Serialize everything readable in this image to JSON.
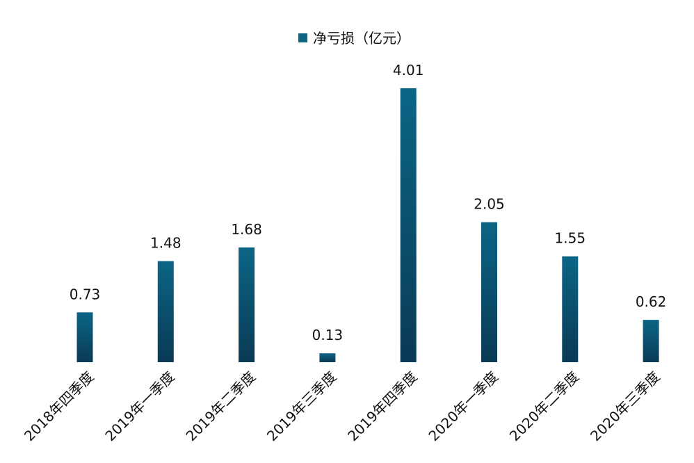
{
  "chart_data": {
    "type": "bar",
    "categories": [
      "2018年四季度",
      "2019年一季度",
      "2019年二季度",
      "2019年三季度",
      "2019年四季度",
      "2020年一季度",
      "2020年二季度",
      "2020年三季度"
    ],
    "series": [
      {
        "name": "净亏损（亿元）",
        "values": [
          0.73,
          1.48,
          1.68,
          0.13,
          4.01,
          2.05,
          1.55,
          0.62
        ],
        "color_top": "#0b6585",
        "color_bottom": "#0a3a55"
      }
    ],
    "title": "",
    "xlabel": "",
    "ylabel": "",
    "ylim": [
      0,
      4.01
    ],
    "grid": false,
    "legend_position": "top-center",
    "data_labels": true
  }
}
